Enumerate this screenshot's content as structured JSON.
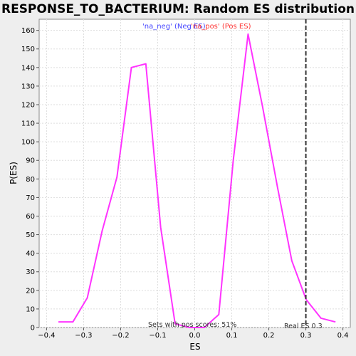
{
  "chart_data": {
    "type": "line",
    "title": "RESPONSE_TO_BACTERIUM: Random ES distribution",
    "xlabel": "ES",
    "ylabel": "P(ES)",
    "xlim": [
      -0.42,
      0.42
    ],
    "ylim": [
      0,
      166
    ],
    "xticks": [
      -0.4,
      -0.3,
      -0.2,
      -0.1,
      0.0,
      0.1,
      0.2,
      0.3,
      0.4
    ],
    "xtick_labels": [
      "−0.4",
      "−0.3",
      "−0.2",
      "−0.1",
      "0.0",
      "0.1",
      "0.2",
      "0.3",
      "0.4"
    ],
    "yticks": [
      0,
      10,
      20,
      30,
      40,
      50,
      60,
      70,
      80,
      90,
      100,
      110,
      120,
      130,
      140,
      150,
      160
    ],
    "grid": true,
    "series": [
      {
        "color": "#ff33ff",
        "x": [
          -0.368,
          -0.329,
          -0.29,
          -0.25,
          -0.21,
          -0.171,
          -0.132,
          -0.092,
          -0.053,
          -0.014,
          0.026,
          0.065,
          0.104,
          0.144,
          0.183,
          0.223,
          0.262,
          0.301,
          0.341,
          0.38
        ],
        "y": [
          3,
          3,
          16,
          52,
          81,
          140,
          142,
          54,
          2,
          0,
          0,
          7,
          90,
          158,
          119,
          76,
          36,
          15,
          5,
          3
        ]
      }
    ],
    "legend": [
      {
        "label": "'na_neg' (Neg ES)",
        "color": "#4444ff"
      },
      {
        "label": "'na_pos' (Pos ES)",
        "color": "#ff3333"
      }
    ],
    "real_es": 0.3,
    "annotations": {
      "pos_scores": "Sets with pos scores: 51%",
      "real_es_label": "Real ES 0.3"
    }
  }
}
